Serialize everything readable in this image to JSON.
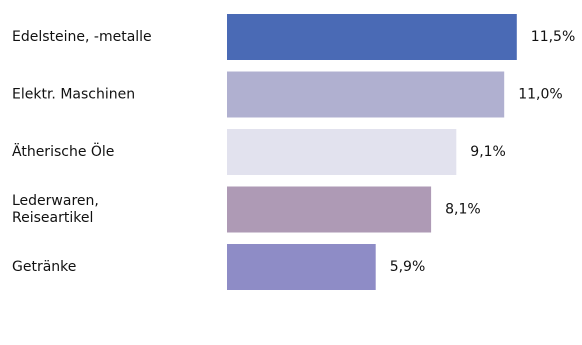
{
  "chart_data": {
    "type": "bar",
    "orientation": "horizontal",
    "categories": [
      "Edelsteine, -metalle",
      "Elektr. Maschinen",
      "Ätherische Öle",
      "Lederwaren, Reiseartikel",
      "Getränke"
    ],
    "category_lines": [
      [
        "Edelsteine, -metalle"
      ],
      [
        "Elektr. Maschinen"
      ],
      [
        "Ätherische Öle"
      ],
      [
        "Lederwaren,",
        "Reiseartikel"
      ],
      [
        "Getränke"
      ]
    ],
    "values": [
      11.5,
      11.0,
      9.1,
      8.1,
      5.9
    ],
    "value_labels": [
      "11,5%",
      "11,0%",
      "9,1%",
      "8,1%",
      "5,9%"
    ],
    "bar_colors": [
      "#4a6ab5",
      "#b0b0d0",
      "#e2e2ee",
      "#ae9ab5",
      "#8e8cc6"
    ],
    "xlim": [
      0,
      12
    ],
    "grid": false,
    "legend": "none",
    "title": "",
    "xlabel": "",
    "ylabel": ""
  }
}
